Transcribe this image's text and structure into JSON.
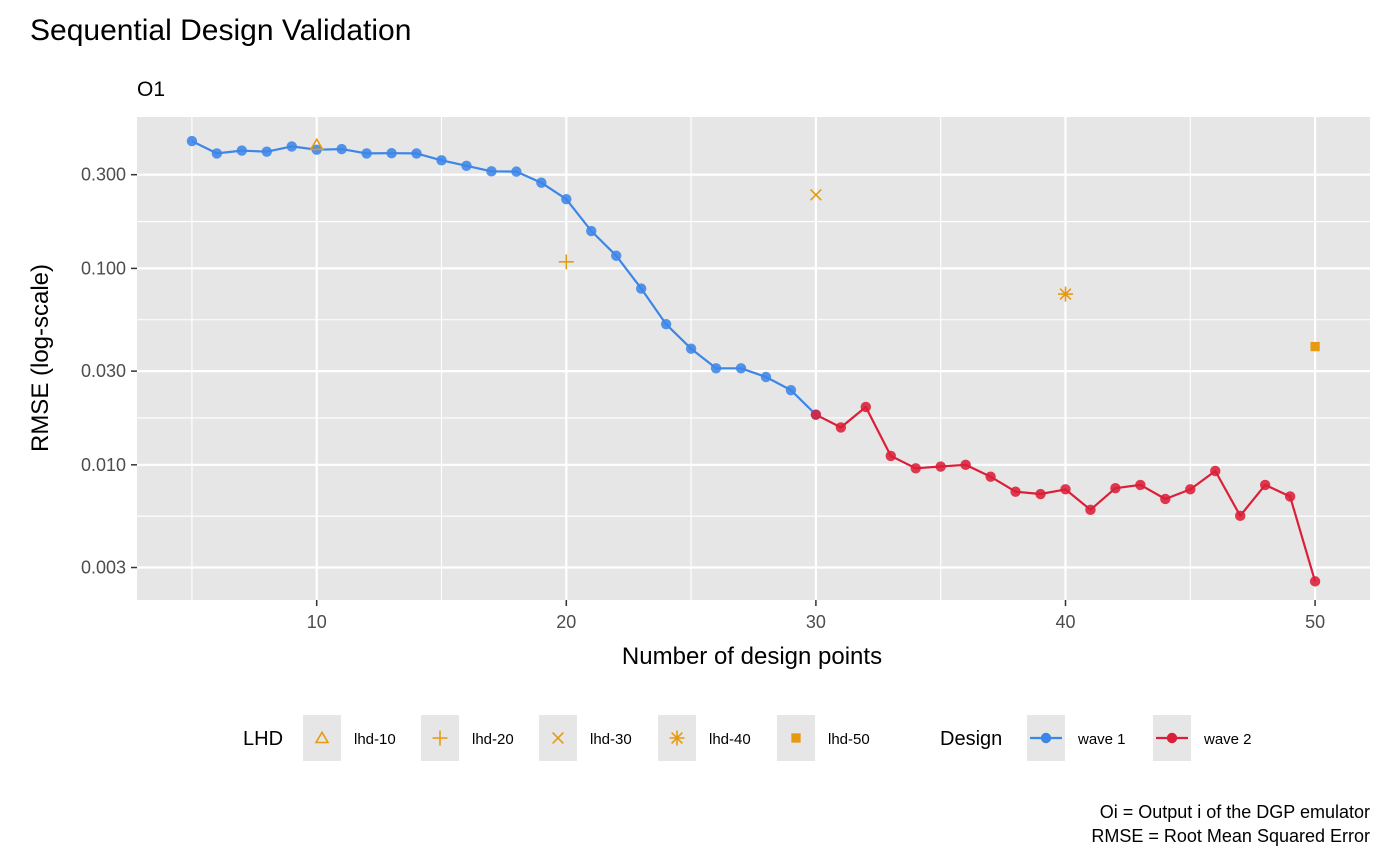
{
  "chart_data": {
    "type": "line",
    "title": "Sequential Design Validation",
    "subtitle": "O1",
    "xlabel": "Number of design points",
    "ylabel": "RMSE (log-scale)",
    "x_scale": "linear",
    "y_scale": "log10",
    "xlim": [
      2.8,
      52.2
    ],
    "ylim": [
      0.00205,
      0.59
    ],
    "x_ticks": [
      10,
      20,
      30,
      40,
      50
    ],
    "x_tick_labels": [
      "10",
      "20",
      "30",
      "40",
      "50"
    ],
    "y_ticks": [
      0.003,
      0.01,
      0.03,
      0.1,
      0.3
    ],
    "y_tick_labels": [
      "0.003",
      "0.010",
      "0.030",
      "0.100",
      "0.300"
    ],
    "grid": true,
    "legend_position": "bottom",
    "series": [
      {
        "name": "wave 1",
        "group": "Design",
        "color": "#3c86e8",
        "x": [
          5,
          6,
          7,
          8,
          9,
          10,
          11,
          12,
          13,
          14,
          15,
          16,
          17,
          18,
          19,
          20,
          21,
          22,
          23,
          24,
          25,
          26,
          27,
          28,
          29,
          30
        ],
        "y": [
          0.445,
          0.385,
          0.398,
          0.393,
          0.418,
          0.402,
          0.405,
          0.385,
          0.386,
          0.385,
          0.355,
          0.333,
          0.312,
          0.311,
          0.273,
          0.225,
          0.155,
          0.116,
          0.079,
          0.052,
          0.039,
          0.031,
          0.031,
          0.028,
          0.024,
          0.018
        ]
      },
      {
        "name": "wave 2",
        "group": "Design",
        "color": "#dc1f38",
        "x": [
          30,
          31,
          32,
          33,
          34,
          35,
          36,
          37,
          38,
          39,
          40,
          41,
          42,
          43,
          44,
          45,
          46,
          47,
          48,
          49,
          50
        ],
        "y": [
          0.018,
          0.0155,
          0.0197,
          0.0111,
          0.0096,
          0.0098,
          0.01,
          0.0087,
          0.0073,
          0.0071,
          0.0075,
          0.0059,
          0.0076,
          0.0079,
          0.0067,
          0.0075,
          0.0093,
          0.0055,
          0.0079,
          0.0069,
          0.00255
        ]
      }
    ],
    "lhd_points": [
      {
        "name": "lhd-10",
        "group": "LHD",
        "x": 10,
        "y": 0.425,
        "shape": "triangle-open-icon"
      },
      {
        "name": "lhd-20",
        "group": "LHD",
        "x": 20,
        "y": 0.108,
        "shape": "plus-icon"
      },
      {
        "name": "lhd-30",
        "group": "LHD",
        "x": 30,
        "y": 0.237,
        "shape": "cross-icon"
      },
      {
        "name": "lhd-40",
        "group": "LHD",
        "x": 40,
        "y": 0.074,
        "shape": "asterisk-icon"
      },
      {
        "name": "lhd-50",
        "group": "LHD",
        "x": 50,
        "y": 0.04,
        "shape": "square-filled-icon"
      }
    ],
    "lhd_color": "#e69a10",
    "legend_groups": [
      {
        "title": "LHD",
        "items": [
          "lhd-10",
          "lhd-20",
          "lhd-30",
          "lhd-40",
          "lhd-50"
        ]
      },
      {
        "title": "Design",
        "items": [
          "wave 1",
          "wave 2"
        ]
      }
    ],
    "caption": [
      "Oi = Output i of the DGP emulator",
      "RMSE = Root Mean Squared Error"
    ]
  }
}
